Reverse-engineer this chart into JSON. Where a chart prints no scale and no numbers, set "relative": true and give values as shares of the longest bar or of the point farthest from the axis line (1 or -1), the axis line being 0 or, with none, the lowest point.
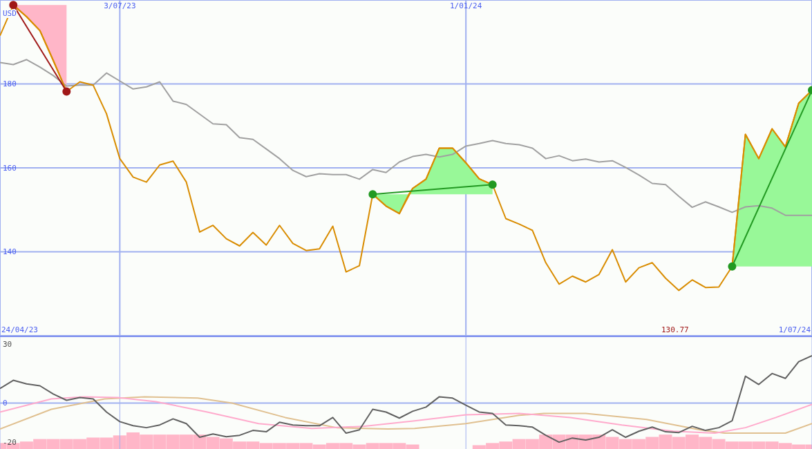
{
  "chart_data": [
    {
      "type": "line",
      "xlim": [
        "2023-05-01",
        "2024-07-01"
      ],
      "xticks": [
        {
          "value": "2023-07-03",
          "label": "3/07/23"
        },
        {
          "value": "2024-01-01",
          "label": "1/01/24"
        }
      ],
      "ylim": [
        120,
        200
      ],
      "yticks": [
        140,
        160,
        180
      ],
      "grid": true,
      "annotations": [
        "USD",
        "24/04/23",
        "130.77",
        "1/07/24"
      ],
      "x": [
        "2023-05-01",
        "2023-05-08",
        "2023-05-15",
        "2023-05-22",
        "2023-05-29",
        "2023-06-05",
        "2023-06-12",
        "2023-06-19",
        "2023-06-26",
        "2023-07-03",
        "2023-07-10",
        "2023-07-17",
        "2023-07-24",
        "2023-07-31",
        "2023-08-07",
        "2023-08-14",
        "2023-08-21",
        "2023-08-28",
        "2023-09-04",
        "2023-09-11",
        "2023-09-18",
        "2023-09-25",
        "2023-10-02",
        "2023-10-09",
        "2023-10-16",
        "2023-10-23",
        "2023-10-30",
        "2023-11-06",
        "2023-11-13",
        "2023-11-20",
        "2023-11-27",
        "2023-12-04",
        "2023-12-11",
        "2023-12-18",
        "2023-12-25",
        "2024-01-01",
        "2024-01-08",
        "2024-01-15",
        "2024-01-22",
        "2024-01-29",
        "2024-02-05",
        "2024-02-12",
        "2024-02-19",
        "2024-02-26",
        "2024-03-04",
        "2024-03-11",
        "2024-03-18",
        "2024-03-25",
        "2024-04-01",
        "2024-04-08",
        "2024-04-15",
        "2024-04-22",
        "2024-04-29",
        "2024-05-06",
        "2024-05-13",
        "2024-05-20",
        "2024-05-27",
        "2024-06-03",
        "2024-06-10",
        "2024-06-17",
        "2024-06-24",
        "2024-07-01"
      ],
      "series": [
        {
          "color": "#d98c00",
          "x": [
            "2023-05-08",
            "2023-05-15",
            "2023-05-22",
            "2023-05-29",
            "2023-06-05"
          ],
          "values": [
            198.8,
            196.0,
            192.7,
            185.6,
            178.2
          ],
          "lower": [
            198.8,
            196.0,
            192.7,
            185.6,
            178.2
          ],
          "upper": [
            198.8,
            198.8,
            198.8,
            198.8,
            198.8
          ]
        },
        {
          "color": "#d98c00",
          "x": [
            "2023-11-13",
            "2023-11-20",
            "2023-11-27",
            "2023-12-02",
            "2023-12-04",
            "2023-12-11",
            "2023-12-18",
            "2023-12-25",
            "2024-01-01",
            "2024-01-08",
            "2024-01-15"
          ],
          "values": [
            153.7,
            150.9,
            149.1,
            153.7,
            155.1,
            157.3,
            164.7,
            164.7,
            161.2,
            157.4,
            156.0
          ],
          "lower": [
            153.7,
            150.9,
            149.1,
            153.7,
            153.7,
            153.7,
            153.7,
            153.7,
            153.7,
            153.7,
            153.7
          ],
          "upper": [
            153.7,
            153.7,
            153.7,
            153.7,
            155.1,
            157.3,
            164.7,
            164.7,
            161.2,
            157.4,
            156.0
          ]
        },
        {
          "color": "#d98c00",
          "x": [
            "2024-05-20",
            "2024-05-27",
            "2024-06-03",
            "2024-06-10",
            "2024-06-17",
            "2024-06-24",
            "2024-07-01"
          ],
          "values": [
            136.5,
            168.0,
            162.2,
            169.3,
            165.0,
            175.4,
            178.5
          ],
          "lower": [
            136.5,
            136.5,
            136.5,
            136.5,
            136.5,
            136.5,
            136.5
          ],
          "upper": [
            136.5,
            168.0,
            162.2,
            169.3,
            165.0,
            175.4,
            178.5
          ]
        },
        {
          "color": "#a0a0a0",
          "values": [
            185.1,
            184.6,
            185.8,
            184.0,
            182.0,
            179.5,
            179.7,
            179.7,
            182.6,
            180.7,
            178.8,
            179.3,
            180.5,
            175.9,
            175.1,
            172.8,
            170.5,
            170.3,
            167.2,
            166.8,
            164.5,
            162.2,
            159.4,
            157.9,
            158.6,
            158.4,
            158.4,
            157.3,
            159.6,
            158.9,
            161.4,
            162.7,
            163.2,
            162.6,
            163.2,
            165.2,
            165.8,
            166.5,
            165.8,
            165.5,
            164.7,
            162.2,
            162.9,
            161.7,
            162.1,
            161.4,
            161.7,
            160.1,
            158.3,
            156.3,
            156.0,
            153.2,
            150.6,
            151.9,
            150.7,
            149.4,
            150.7,
            151.0,
            150.4,
            148.7,
            148.7,
            148.7
          ]
        },
        {
          "color": "#d98c00",
          "values": [
            191.5,
            198.8,
            196.0,
            192.7,
            185.6,
            178.2,
            180.5,
            179.7,
            172.9,
            162.2,
            157.8,
            156.6,
            160.7,
            161.6,
            156.6,
            144.7,
            146.3,
            143.1,
            141.4,
            144.6,
            141.6,
            146.3,
            142.0,
            140.3,
            140.7,
            146.1,
            135.2,
            136.7,
            153.7,
            150.9,
            149.1,
            155.1,
            157.3,
            164.7,
            164.7,
            161.2,
            157.4,
            156.0,
            147.9,
            146.6,
            145.1,
            137.4,
            132.3,
            134.2,
            132.8,
            134.6,
            140.5,
            132.8,
            136.2,
            137.4,
            133.7,
            130.8,
            133.3,
            131.5,
            131.6,
            136.5,
            168.0,
            162.2,
            169.3,
            165.0,
            175.4,
            178.5
          ]
        },
        {
          "color": "#a01818",
          "marker": "circle",
          "x": [
            "2023-05-08",
            "2023-06-05"
          ],
          "values": [
            198.8,
            178.2
          ]
        },
        {
          "color": "#229922",
          "marker": "circle",
          "x": [
            "2023-11-13",
            "2024-01-15"
          ],
          "values": [
            153.7,
            156.0
          ]
        },
        {
          "color": "#229922",
          "marker": "circle",
          "x": [
            "2024-05-20",
            "2024-07-01"
          ],
          "values": [
            136.5,
            178.5
          ]
        }
      ]
    },
    {
      "type": "line",
      "xlim": [
        "2023-05-01",
        "2024-07-01"
      ],
      "xticks": [
        {
          "value": "2023-07-03",
          "label": null
        },
        {
          "value": "2024-01-01",
          "label": null
        }
      ],
      "ylim": [
        -23.5,
        33.7
      ],
      "yticks": [
        -20,
        0,
        30
      ],
      "grid": "x",
      "tick_labels": "y",
      "ref_lines": [
        {
          "axis": "y",
          "value": 0,
          "color": "#a0b0f0"
        }
      ],
      "x": [
        "2023-05-01",
        "2023-05-08",
        "2023-05-15",
        "2023-05-22",
        "2023-05-29",
        "2023-06-05",
        "2023-06-12",
        "2023-06-19",
        "2023-06-26",
        "2023-07-03",
        "2023-07-10",
        "2023-07-17",
        "2023-07-24",
        "2023-07-31",
        "2023-08-07",
        "2023-08-14",
        "2023-08-21",
        "2023-08-28",
        "2023-09-04",
        "2023-09-11",
        "2023-09-18",
        "2023-09-25",
        "2023-10-02",
        "2023-10-09",
        "2023-10-16",
        "2023-10-23",
        "2023-10-30",
        "2023-11-06",
        "2023-11-13",
        "2023-11-20",
        "2023-11-27",
        "2023-12-04",
        "2023-12-11",
        "2023-12-18",
        "2023-12-25",
        "2024-01-01",
        "2024-01-08",
        "2024-01-15",
        "2024-01-22",
        "2024-01-29",
        "2024-02-05",
        "2024-02-12",
        "2024-02-19",
        "2024-02-26",
        "2024-03-04",
        "2024-03-11",
        "2024-03-18",
        "2024-03-25",
        "2024-04-01",
        "2024-04-08",
        "2024-04-15",
        "2024-04-22",
        "2024-04-29",
        "2024-05-06",
        "2024-05-13",
        "2024-05-20",
        "2024-05-27",
        "2024-06-03",
        "2024-06-10",
        "2024-06-17",
        "2024-06-24",
        "2024-07-01"
      ],
      "series": [
        {
          "color": "#e0c090",
          "x": [
            "2023-05-01",
            "2023-05-28",
            "2023-06-25",
            "2023-07-16",
            "2023-08-13",
            "2023-08-31",
            "2023-09-28",
            "2023-10-25",
            "2023-11-21",
            "2023-12-05",
            "2024-01-01",
            "2024-01-29",
            "2024-02-11",
            "2024-03-04",
            "2024-04-05",
            "2024-05-03",
            "2024-05-16",
            "2024-06-17",
            "2024-07-01"
          ],
          "values": [
            -13.3,
            -3.2,
            2.1,
            3.2,
            2.5,
            0,
            -7.4,
            -12.6,
            -13.3,
            -13.0,
            -10.5,
            -6.3,
            -5.3,
            -5.3,
            -8.4,
            -13.7,
            -15.4,
            -15.4,
            -10.5
          ]
        },
        {
          "color": "#ffaacc",
          "x": [
            "2023-05-01",
            "2023-05-28",
            "2023-06-14",
            "2023-07-02",
            "2023-07-22",
            "2023-08-18",
            "2023-09-14",
            "2023-10-12",
            "2023-11-08",
            "2023-12-05",
            "2024-01-01",
            "2024-01-29",
            "2024-02-25",
            "2024-03-23",
            "2024-04-19",
            "2024-05-11",
            "2024-05-27",
            "2024-06-12",
            "2024-07-01"
          ],
          "values": [
            -4.6,
            2.1,
            3.2,
            2.8,
            0.7,
            -4.6,
            -10.5,
            -13.0,
            -11.9,
            -9.1,
            -6.0,
            -5.3,
            -7.4,
            -11.2,
            -14.4,
            -15.4,
            -12.6,
            -7.4,
            -0.7
          ]
        },
        {
          "color": "#606060",
          "values": [
            7.4,
            11.6,
            9.8,
            8.8,
            4.6,
            1.4,
            2.8,
            2.1,
            -4.6,
            -9.5,
            -11.6,
            -12.6,
            -11.2,
            -8.1,
            -10.5,
            -17.5,
            -15.8,
            -17.2,
            -16.5,
            -14.0,
            -14.7,
            -9.8,
            -11.2,
            -11.6,
            -11.6,
            -7.4,
            -15.4,
            -13.7,
            -3.2,
            -4.6,
            -7.7,
            -4.2,
            -2.1,
            3.2,
            2.5,
            -1.1,
            -4.6,
            -5.3,
            -11.2,
            -11.6,
            -12.3,
            -16.5,
            -20.0,
            -17.9,
            -18.9,
            -17.5,
            -13.7,
            -17.5,
            -14.4,
            -12.3,
            -14.7,
            -15.1,
            -11.9,
            -14.0,
            -12.6,
            -9.1,
            13.7,
            9.5,
            15.1,
            12.6,
            21.1,
            24.2
          ]
        }
      ]
    },
    {
      "type": "bar",
      "relative": true,
      "xlim": [
        "2023-05-01",
        "2024-07-01"
      ],
      "tick_labels": false,
      "color": "#ffb6c8",
      "x": [
        "2023-05-01",
        "2023-05-08",
        "2023-05-15",
        "2023-05-22",
        "2023-05-29",
        "2023-06-05",
        "2023-06-12",
        "2023-06-19",
        "2023-06-26",
        "2023-07-03",
        "2023-07-10",
        "2023-07-17",
        "2023-07-24",
        "2023-07-31",
        "2023-08-07",
        "2023-08-14",
        "2023-08-21",
        "2023-08-28",
        "2023-09-04",
        "2023-09-11",
        "2023-09-18",
        "2023-09-25",
        "2023-10-02",
        "2023-10-09",
        "2023-10-16",
        "2023-10-23",
        "2023-10-30",
        "2023-11-06",
        "2023-11-13",
        "2023-11-20",
        "2023-11-27",
        "2023-12-04",
        "2023-12-11",
        "2023-12-18",
        "2023-12-25",
        "2024-01-01",
        "2024-01-08",
        "2024-01-15",
        "2024-01-22",
        "2024-01-29",
        "2024-02-05",
        "2024-02-12",
        "2024-02-19",
        "2024-02-26",
        "2024-03-04",
        "2024-03-11",
        "2024-03-18",
        "2024-03-25",
        "2024-04-01",
        "2024-04-08",
        "2024-04-15",
        "2024-04-22",
        "2024-04-29",
        "2024-05-06",
        "2024-05-13",
        "2024-05-20",
        "2024-05-27",
        "2024-06-03",
        "2024-06-10",
        "2024-06-17",
        "2024-06-24",
        "2024-07-01"
      ],
      "values": [
        0.36,
        0.36,
        0.45,
        0.6,
        0.6,
        0.6,
        0.6,
        0.69,
        0.69,
        0.82,
        1,
        0.87,
        0.87,
        0.87,
        0.87,
        0.87,
        0.73,
        0.64,
        0.45,
        0.45,
        0.36,
        0.36,
        0.36,
        0.36,
        0.27,
        0.36,
        0.36,
        0.27,
        0.36,
        0.36,
        0.36,
        0.27,
        0,
        0,
        0,
        0,
        0.23,
        0.36,
        0.45,
        0.6,
        0.6,
        0.87,
        0.87,
        0.87,
        0.87,
        0.87,
        0.73,
        0.6,
        0.6,
        0.73,
        0.87,
        0.73,
        0.87,
        0.73,
        0.6,
        0.45,
        0.45,
        0.45,
        0.45,
        0.36,
        0.27,
        0.27
      ]
    }
  ]
}
